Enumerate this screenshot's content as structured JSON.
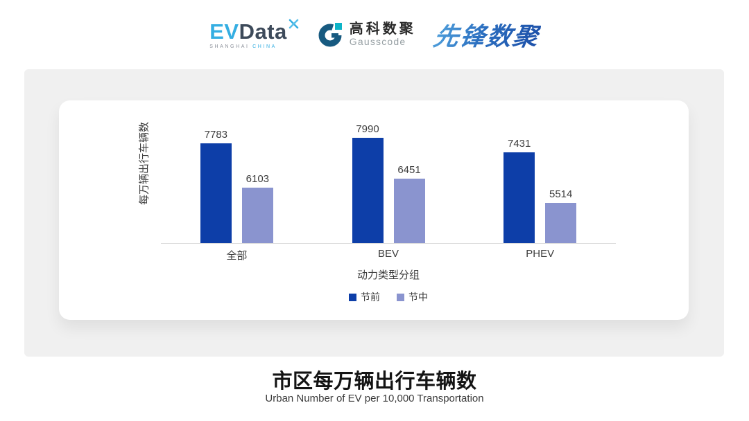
{
  "header": {
    "evdata_logo": {
      "ev": "EV",
      "data": "Data",
      "sub_left": "SHANGHAI",
      "sub_right": "CHINA"
    },
    "gausscode_logo": {
      "cn_name": "高科数聚",
      "en_name": "Gausscode"
    },
    "pioneer_logo": {
      "text": "先锋数聚"
    }
  },
  "chart_data": {
    "type": "bar",
    "categories": [
      "全部",
      "BEV",
      "PHEV"
    ],
    "series": [
      {
        "name": "节前",
        "color": "#0d3ea8",
        "values": [
          7783,
          7990,
          7431
        ]
      },
      {
        "name": "节中",
        "color": "#8a94cf",
        "values": [
          6103,
          6451,
          5514
        ]
      }
    ],
    "xlabel": "动力类型分组",
    "ylabel": "每万辆出行车辆数",
    "ylim": [
      4000,
      8200
    ],
    "bar_value_labels": true,
    "grid": false,
    "legend_position": "bottom"
  },
  "footer": {
    "title": "市区每万辆出行车辆数",
    "subtitle": "Urban Number of EV per 10,000 Transportation"
  },
  "colors": {
    "pre_festival_bar": "#0d3ea8",
    "mid_festival_bar": "#8a94cf",
    "panel_background": "#f0f0f0",
    "card_background": "#ffffff",
    "axis_line": "#d9d9d9",
    "chart_text": "#3c3c3c",
    "evdata_blue": "#35aee2",
    "evdata_dark": "#3d4a5a",
    "gausscode_dark": "#175a80",
    "gausscode_cyan": "#0db4c8",
    "pioneer_blue": "#2b6fc0"
  }
}
